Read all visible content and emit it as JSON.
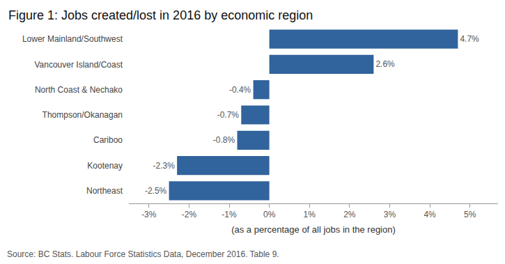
{
  "chart_data": {
    "type": "bar",
    "orientation": "horizontal",
    "title": "Figure 1: Jobs created/lost in 2016 by economic region",
    "x_label": "(as a percentage of all jobs in the region)",
    "source": "Source: BC Stats. Labour Force Statistics Data, December 2016. Table 9.",
    "categories": [
      "Lower Mainland/Southwest",
      "Vancouver Island/Coast",
      "North Coast & Nechako",
      "Thompson/Okanagan",
      "Cariboo",
      "Kootenay",
      "Northeast"
    ],
    "values": [
      4.7,
      2.6,
      -0.4,
      -0.7,
      -0.8,
      -2.3,
      -2.5
    ],
    "value_labels": [
      "4.7%",
      "2.6%",
      "-0.4%",
      "-0.7%",
      "-0.8%",
      "-2.3%",
      "-2.5%"
    ],
    "data_labels": true,
    "color": "#31639c",
    "xlim": [
      -3.5,
      5.7
    ],
    "xticks": [
      {
        "value": -3,
        "label": "-3%"
      },
      {
        "value": -2,
        "label": "-2%"
      },
      {
        "value": -1,
        "label": "-1%"
      },
      {
        "value": 0,
        "label": "0%"
      },
      {
        "value": 1,
        "label": "1%"
      },
      {
        "value": 2,
        "label": "2%"
      },
      {
        "value": 3,
        "label": "3%"
      },
      {
        "value": 4,
        "label": "4%"
      },
      {
        "value": 5,
        "label": "5%"
      }
    ],
    "grid": false
  }
}
